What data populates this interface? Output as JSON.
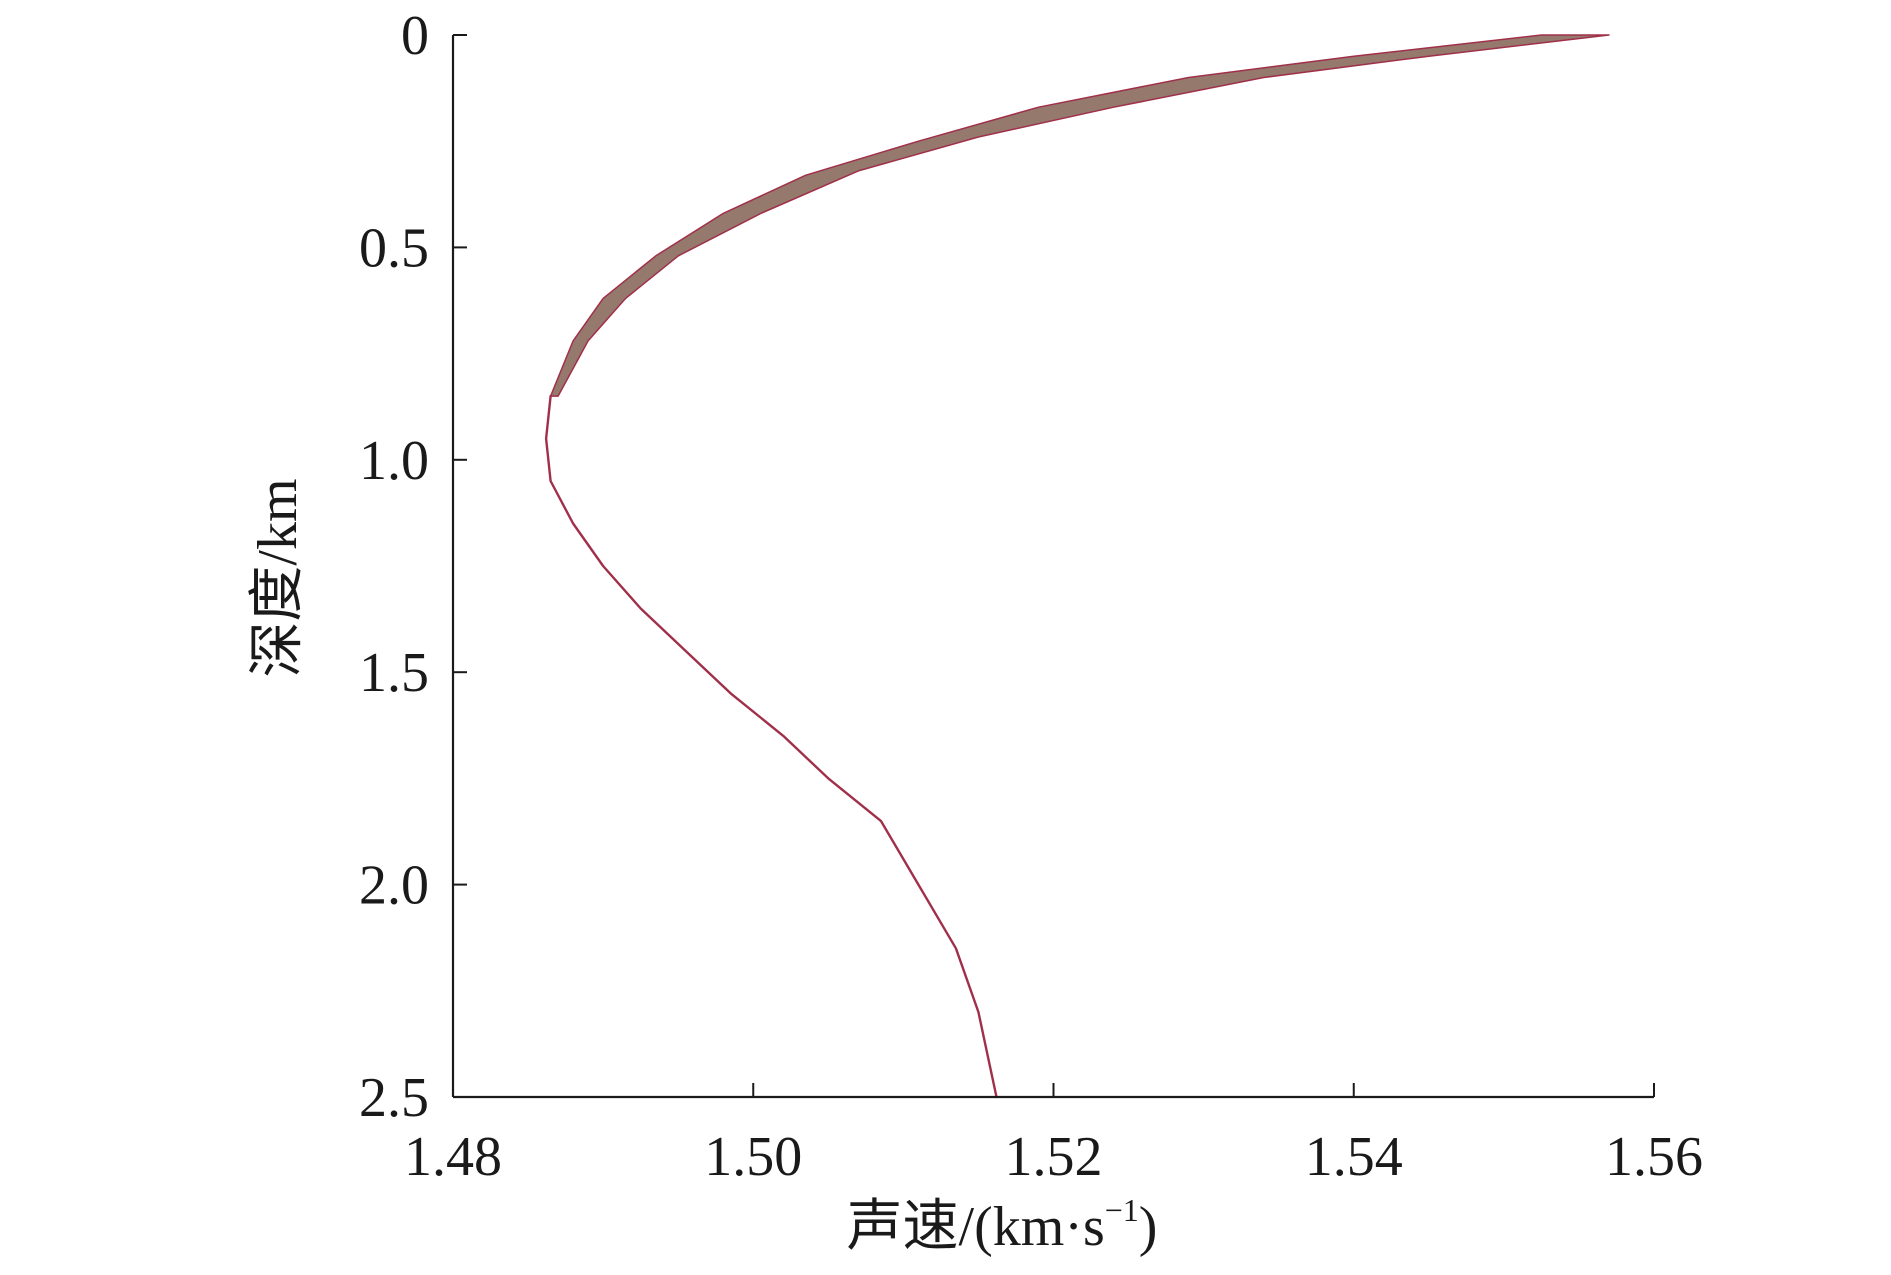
{
  "chart_data": {
    "type": "line",
    "xlabel": "声速/(km·s",
    "xlabel_sup": "−1",
    "xlabel_close": ")",
    "ylabel": "深度/km",
    "xlim": [
      1.48,
      1.56
    ],
    "ylim": [
      0,
      2.5
    ],
    "y_inverted": true,
    "x_axis_position": "bottom",
    "y_axis_position": "left",
    "grid": false,
    "x_ticks": [
      {
        "value": 1.48,
        "label": "1.48"
      },
      {
        "value": 1.5,
        "label": "1.50"
      },
      {
        "value": 1.52,
        "label": "1.52"
      },
      {
        "value": 1.54,
        "label": "1.54"
      },
      {
        "value": 1.56,
        "label": "1.56"
      }
    ],
    "y_ticks": [
      {
        "value": 0.0,
        "label": "0"
      },
      {
        "value": 0.5,
        "label": "0.5"
      },
      {
        "value": 1.0,
        "label": "1.0"
      },
      {
        "value": 1.5,
        "label": "1.5"
      },
      {
        "value": 2.0,
        "label": "2.0"
      },
      {
        "value": 2.5,
        "label": "2.5"
      }
    ],
    "band": {
      "color": "#8a6a5c",
      "edge_color": "#a0304a",
      "upper_edge": [
        {
          "x": 1.5525,
          "y": 0.0
        },
        {
          "x": 1.54,
          "y": 0.05
        },
        {
          "x": 1.529,
          "y": 0.1
        },
        {
          "x": 1.519,
          "y": 0.17
        },
        {
          "x": 1.511,
          "y": 0.25
        },
        {
          "x": 1.5035,
          "y": 0.33
        },
        {
          "x": 1.498,
          "y": 0.42
        },
        {
          "x": 1.4935,
          "y": 0.52
        },
        {
          "x": 1.49,
          "y": 0.62
        },
        {
          "x": 1.488,
          "y": 0.72
        },
        {
          "x": 1.4865,
          "y": 0.85
        }
      ],
      "lower_edge": [
        {
          "x": 1.557,
          "y": 0.0
        },
        {
          "x": 1.545,
          "y": 0.05
        },
        {
          "x": 1.534,
          "y": 0.1
        },
        {
          "x": 1.524,
          "y": 0.17
        },
        {
          "x": 1.515,
          "y": 0.24
        },
        {
          "x": 1.507,
          "y": 0.32
        },
        {
          "x": 1.5005,
          "y": 0.42
        },
        {
          "x": 1.495,
          "y": 0.52
        },
        {
          "x": 1.4915,
          "y": 0.62
        },
        {
          "x": 1.489,
          "y": 0.72
        },
        {
          "x": 1.487,
          "y": 0.85
        }
      ]
    },
    "series": [
      {
        "color": "#a0304a",
        "points": [
          {
            "x": 1.4865,
            "y": 0.85
          },
          {
            "x": 1.4862,
            "y": 0.95
          },
          {
            "x": 1.4865,
            "y": 1.05
          },
          {
            "x": 1.488,
            "y": 1.15
          },
          {
            "x": 1.49,
            "y": 1.25
          },
          {
            "x": 1.4925,
            "y": 1.35
          },
          {
            "x": 1.4955,
            "y": 1.45
          },
          {
            "x": 1.4985,
            "y": 1.55
          },
          {
            "x": 1.502,
            "y": 1.65
          },
          {
            "x": 1.505,
            "y": 1.75
          },
          {
            "x": 1.5085,
            "y": 1.85
          },
          {
            "x": 1.511,
            "y": 2.0
          },
          {
            "x": 1.5135,
            "y": 2.15
          },
          {
            "x": 1.515,
            "y": 2.3
          },
          {
            "x": 1.5162,
            "y": 2.5
          }
        ]
      }
    ]
  }
}
